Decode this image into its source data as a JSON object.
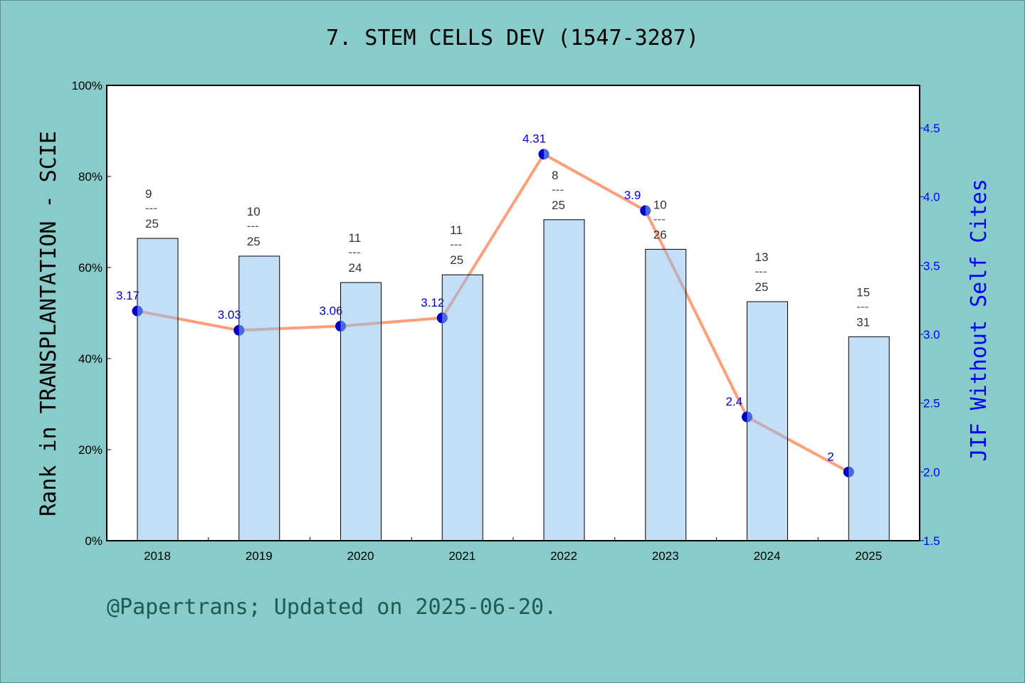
{
  "chart_data": {
    "type": "bar",
    "title": "7. STEM CELLS DEV (1547-3287)",
    "categories": [
      "2018",
      "2019",
      "2020",
      "2021",
      "2022",
      "2023",
      "2024",
      "2025"
    ],
    "ylabel": "Rank in TRANSPLANTATION - SCIE",
    "y2label": "JIF Without Self Cites",
    "ylim": [
      0,
      100
    ],
    "y_ticks": [
      "0%",
      "20%",
      "40%",
      "60%",
      "80%",
      "100%"
    ],
    "y2lim": [
      1.5,
      4.75
    ],
    "y2_ticks": [
      "1.5",
      "2.0",
      "2.5",
      "3.0",
      "3.5",
      "4.0",
      "4.5"
    ],
    "series": [
      {
        "type": "bar",
        "values": [
          66.4,
          62.5,
          56.7,
          58.4,
          70.5,
          64.0,
          52.5,
          44.8
        ],
        "labels": [
          [
            "9",
            "25"
          ],
          [
            "10",
            "25"
          ],
          [
            "11",
            "24"
          ],
          [
            "11",
            "25"
          ],
          [
            "8",
            "25"
          ],
          [
            "10",
            "26"
          ],
          [
            "13",
            "25"
          ],
          [
            "15",
            "31"
          ]
        ]
      },
      {
        "type": "line",
        "axis": "right",
        "values": [
          3.17,
          3.03,
          3.06,
          3.12,
          4.31,
          3.9,
          2.4,
          2.0
        ],
        "labels": [
          "3.17",
          "3.03",
          "3.06",
          "3.12",
          "4.31",
          "3.9",
          "2.4",
          "2"
        ]
      }
    ],
    "colors": {
      "bar": "#c5e0f7",
      "line": "#ff9f7a",
      "marker": "#0000cc",
      "right_axis": "#0000ff",
      "background": "#88cbc9"
    },
    "grid": false
  },
  "footer": "@Papertrans; Updated on 2025-06-20."
}
